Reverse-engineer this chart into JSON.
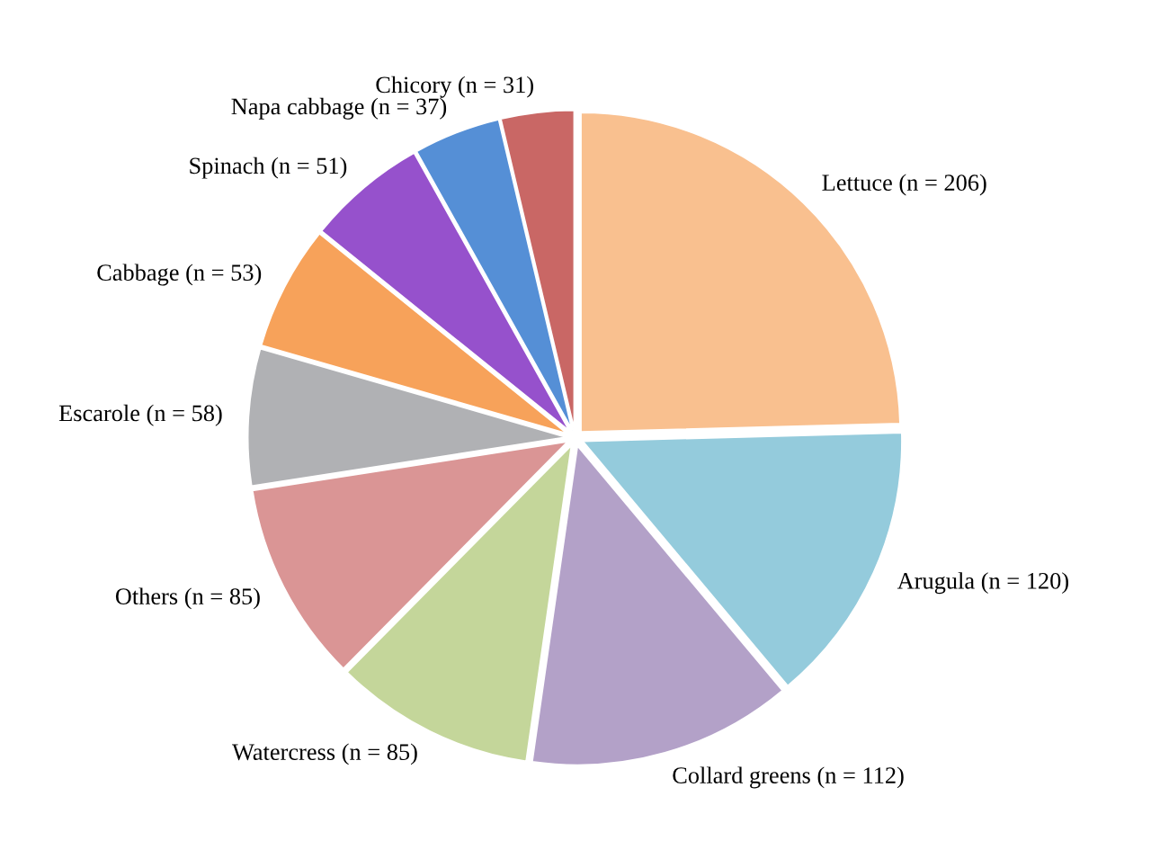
{
  "chart_data": {
    "type": "pie",
    "categories": [
      "Lettuce (n = 206)",
      "Arugula (n = 120)",
      "Collard greens (n = 112)",
      "Watercress (n = 85)",
      "Others (n = 85)",
      "Escarole (n = 58)",
      "Cabbage (n = 53)",
      "Spinach (n = 51)",
      "Napa cabbage (n = 37)",
      "Chicory (n = 31)"
    ],
    "values": [
      206,
      120,
      112,
      85,
      85,
      58,
      53,
      51,
      37,
      31
    ],
    "colors": [
      "#f9c08f",
      "#94cbdc",
      "#b3a1c8",
      "#c4d69a",
      "#da9595",
      "#b0b1b4",
      "#f7a25a",
      "#9651cc",
      "#558fd6",
      "#c96765"
    ],
    "legend": false
  }
}
